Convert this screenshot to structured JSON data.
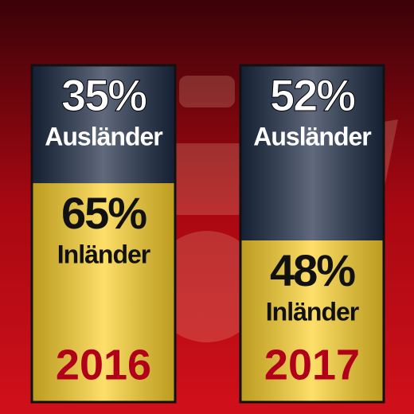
{
  "chart_data": {
    "type": "bar",
    "stacked": true,
    "categories": [
      "2016",
      "2017"
    ],
    "series": [
      {
        "name": "Inländer",
        "color": "#fcd12a",
        "values": [
          65,
          48
        ],
        "value_labels": [
          "65%",
          "48%"
        ]
      },
      {
        "name": "Ausländer",
        "color": "#1c2a44",
        "values": [
          35,
          52
        ],
        "value_labels": [
          "35%",
          "52%"
        ]
      }
    ],
    "ylim": [
      0,
      100
    ]
  }
}
